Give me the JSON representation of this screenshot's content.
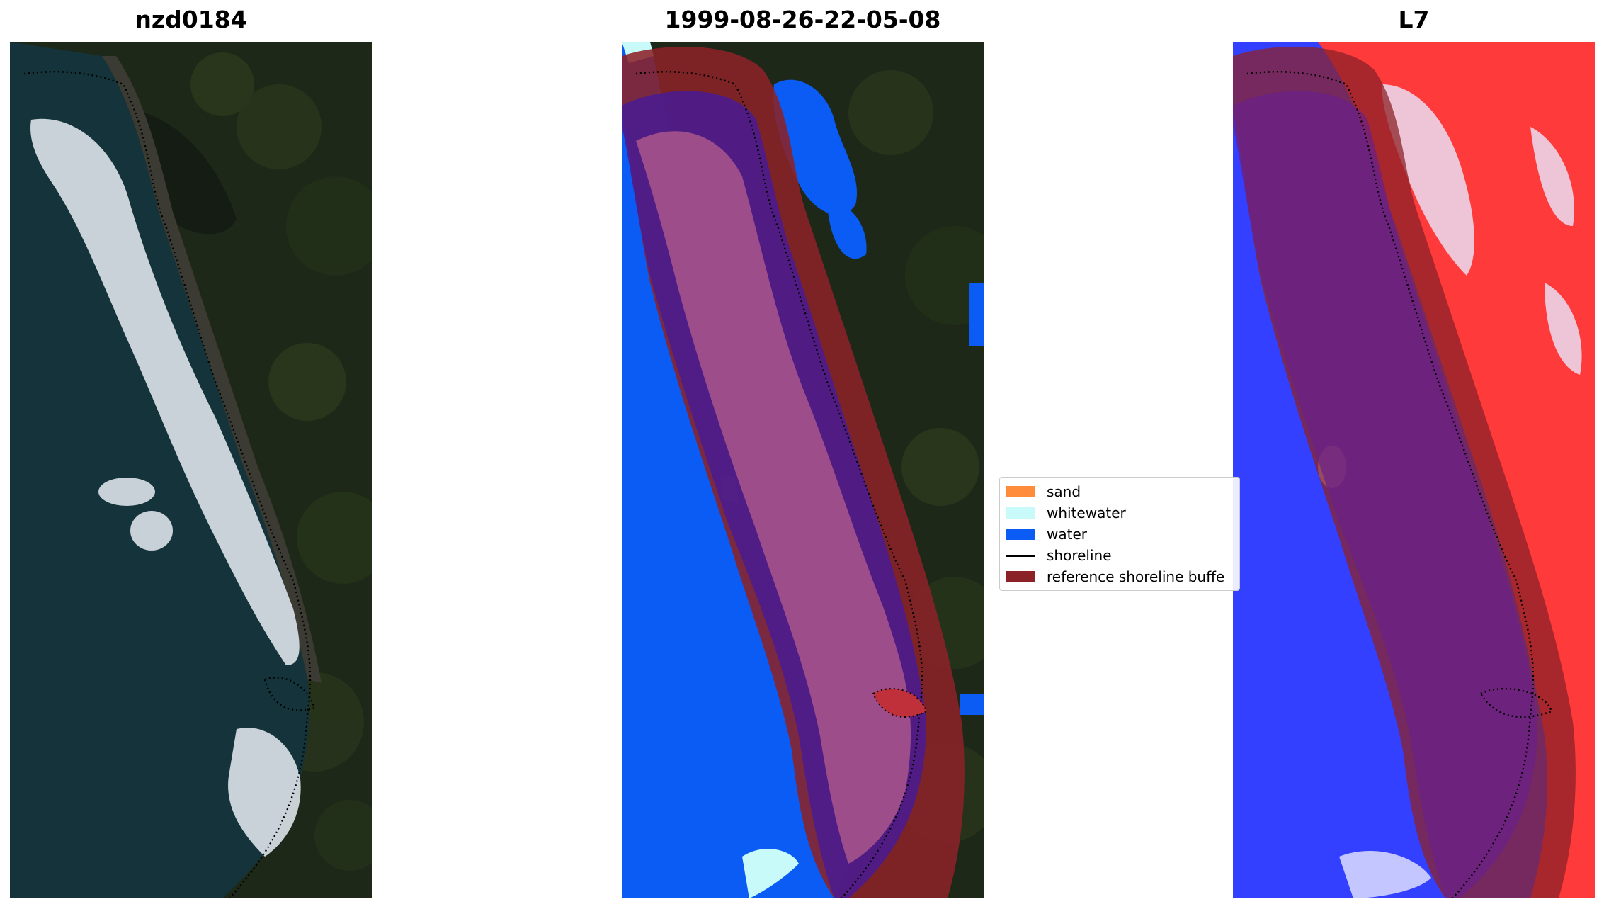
{
  "titles": {
    "left": "nzd0184",
    "center": "1999-08-26-22-05-08",
    "right": "L7"
  },
  "legend": {
    "items": [
      {
        "label": "sand",
        "color": "#ff8c3a",
        "kind": "patch"
      },
      {
        "label": "whitewater",
        "color": "#c8fafa",
        "kind": "patch"
      },
      {
        "label": "water",
        "color": "#0b5cf5",
        "kind": "patch"
      },
      {
        "label": "shoreline",
        "color": "#000000",
        "kind": "line"
      },
      {
        "label": "reference shoreline buffe",
        "color": "#8b2228",
        "kind": "patch"
      }
    ]
  },
  "colors": {
    "ocean": "#15333a",
    "forest": "#1f2a18",
    "surf": "#dde3ea",
    "classified_water": "#0b5cf5",
    "buffer": "#8b2228",
    "index_high": "#ff2a2a",
    "index_low": "#2a35ff"
  }
}
